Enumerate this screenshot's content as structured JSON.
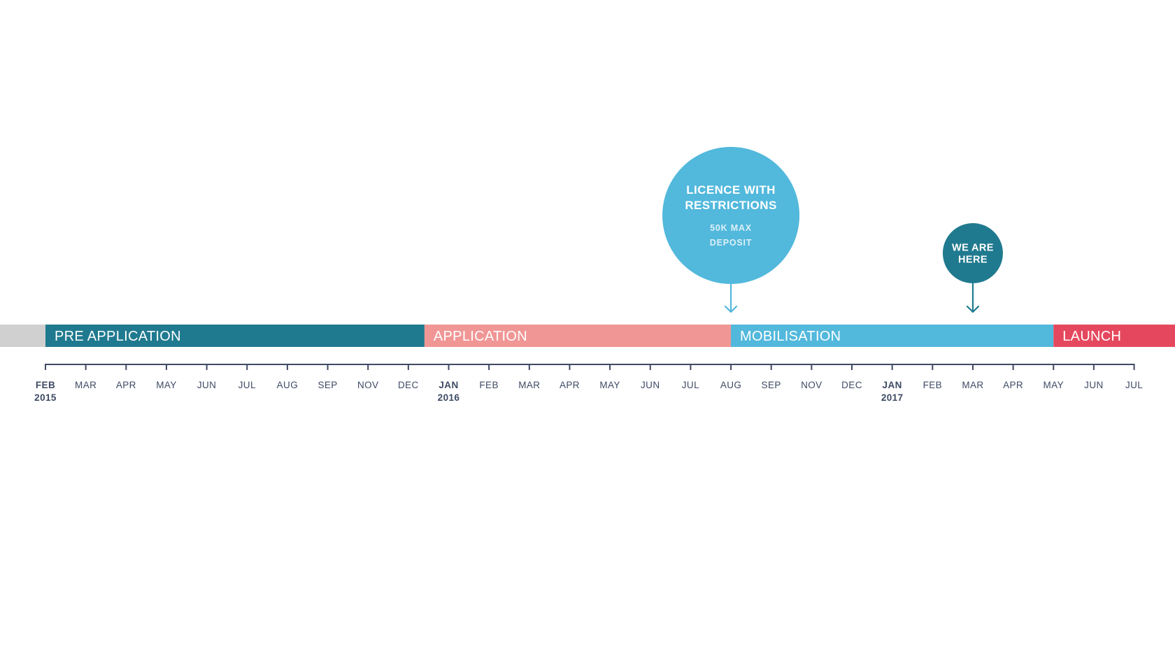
{
  "colors": {
    "axis": "#3e4a64",
    "text_dark": "#3e4a64",
    "lead_in": "#d0d0d0",
    "pre_application": "#207a8f",
    "application": "#f09695",
    "mobilisation": "#52b8dc",
    "launch": "#e5485e",
    "white": "#ffffff"
  },
  "phases": [
    {
      "id": "lead-in",
      "label": "",
      "start": 0.0,
      "end": 1.0,
      "color": "#d0d0d0"
    },
    {
      "id": "pre-application",
      "label": "PRE APPLICATION",
      "start": 1.0,
      "end": 10.4,
      "color": "#207a8f"
    },
    {
      "id": "application",
      "label": "APPLICATION",
      "start": 10.4,
      "end": 18.0,
      "color": "#f09695"
    },
    {
      "id": "mobilisation",
      "label": "MOBILISATION",
      "start": 18.0,
      "end": 26.0,
      "color": "#52b8dc"
    },
    {
      "id": "launch",
      "label": "LAUNCH",
      "start": 26.0,
      "end": 29.0,
      "color": "#e5485e"
    }
  ],
  "months": [
    {
      "label": "FEB",
      "year": "2015",
      "major": true
    },
    {
      "label": "MAR"
    },
    {
      "label": "APR"
    },
    {
      "label": "MAY"
    },
    {
      "label": "JUN"
    },
    {
      "label": "JUL"
    },
    {
      "label": "AUG"
    },
    {
      "label": "SEP"
    },
    {
      "label": "NOV"
    },
    {
      "label": "DEC"
    },
    {
      "label": "JAN",
      "year": "2016",
      "major": true
    },
    {
      "label": "FEB"
    },
    {
      "label": "MAR"
    },
    {
      "label": "APR"
    },
    {
      "label": "MAY"
    },
    {
      "label": "JUN"
    },
    {
      "label": "JUL"
    },
    {
      "label": "AUG"
    },
    {
      "label": "SEP"
    },
    {
      "label": "NOV"
    },
    {
      "label": "DEC"
    },
    {
      "label": "JAN",
      "year": "2017",
      "major": true
    },
    {
      "label": "FEB"
    },
    {
      "label": "MAR"
    },
    {
      "label": "APR"
    },
    {
      "label": "MAY"
    },
    {
      "label": "JUN"
    },
    {
      "label": "JUL"
    }
  ],
  "milestones": [
    {
      "id": "licence-with-restrictions",
      "title_lines": [
        "LICENCE WITH",
        "RESTRICTIONS"
      ],
      "subtitle_lines": [
        "50K MAX",
        "DEPOSIT"
      ],
      "tick_index": 17,
      "size": "large",
      "color": "#52b8dc"
    },
    {
      "id": "we-are-here",
      "title_lines": [
        "WE ARE",
        "HERE"
      ],
      "subtitle_lines": [],
      "tick_index": 23,
      "size": "small",
      "color": "#207a8f"
    }
  ]
}
